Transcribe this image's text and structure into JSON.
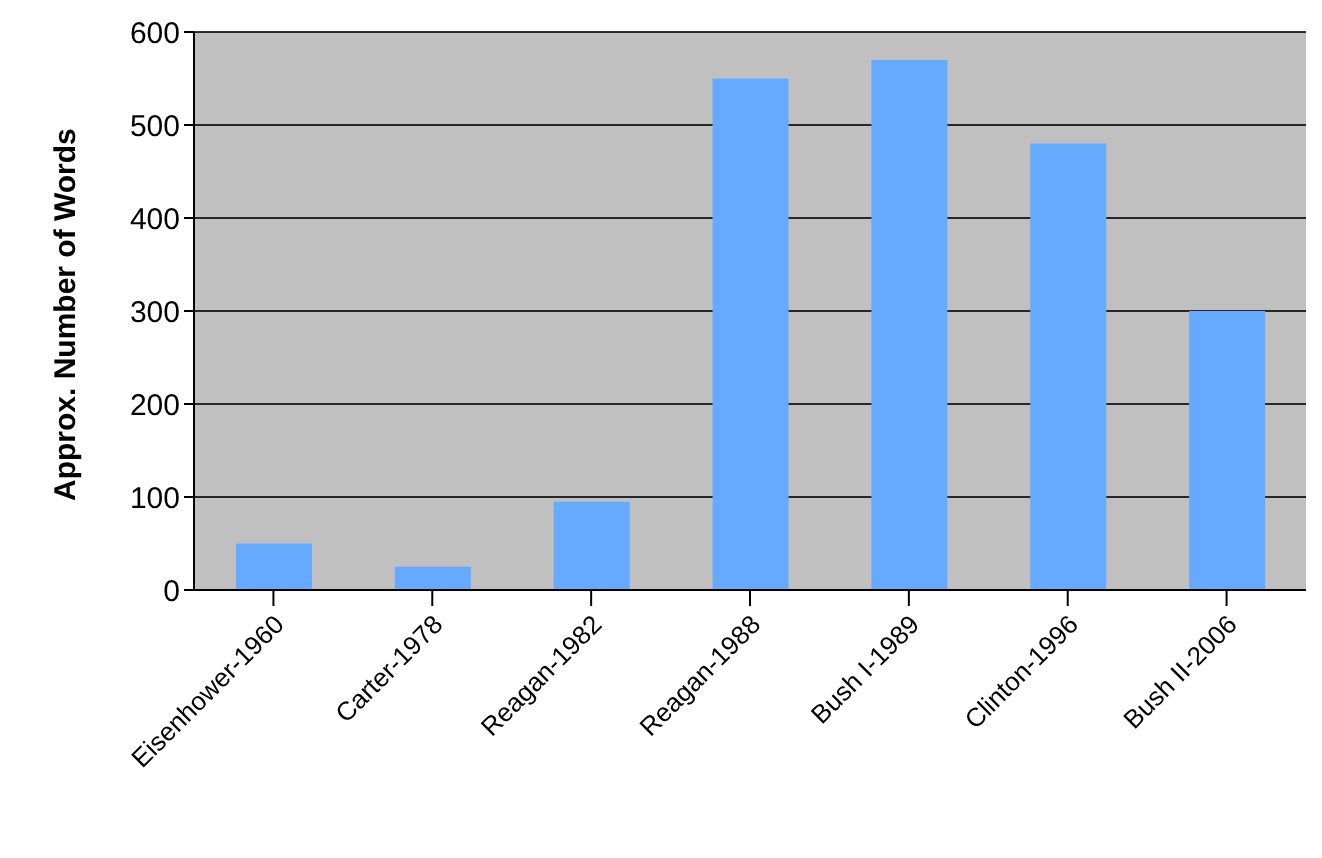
{
  "chart_data": {
    "type": "bar",
    "ylabel": "Approx. Number of Words",
    "categories": [
      "Eisenhower-1960",
      "Carter-1978",
      "Reagan-1982",
      "Reagan-1988",
      "Bush I-1989",
      "Clinton-1996",
      "Bush II-2006"
    ],
    "values": [
      50,
      25,
      95,
      550,
      570,
      480,
      300
    ],
    "color": "#66aaff",
    "ylim": [
      0,
      600
    ],
    "yticks": [
      0,
      100,
      200,
      300,
      400,
      500,
      600
    ],
    "grid": "y",
    "legend": false
  }
}
